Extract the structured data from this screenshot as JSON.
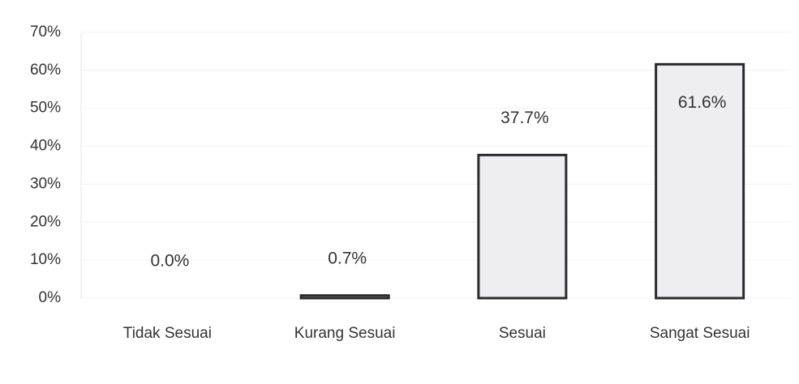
{
  "chart_data": {
    "type": "bar",
    "categories": [
      "Tidak Sesuai",
      "Kurang Sesuai",
      "Sesuai",
      "Sangat Sesuai"
    ],
    "values": [
      0.0,
      0.7,
      37.7,
      61.6
    ],
    "value_labels": [
      "0.0%",
      "0.7%",
      "37.7%",
      "61.6%"
    ],
    "color": "#ededf2",
    "ylim": [
      0,
      70
    ],
    "yticks": [
      {
        "value": 0,
        "label": "0%"
      },
      {
        "value": 10,
        "label": "10%"
      },
      {
        "value": 20,
        "label": "20%"
      },
      {
        "value": 30,
        "label": "30%"
      },
      {
        "value": 40,
        "label": "40%"
      },
      {
        "value": 50,
        "label": "50%"
      },
      {
        "value": 60,
        "label": "60%"
      },
      {
        "value": 70,
        "label": "70%"
      }
    ],
    "grid": true
  }
}
